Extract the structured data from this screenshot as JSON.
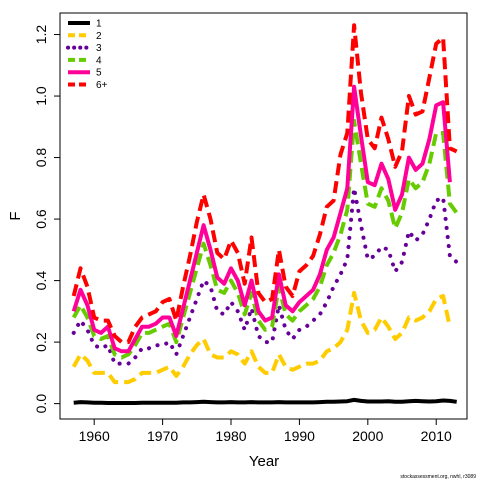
{
  "footnote": "stockassessment.org, nwhl, r3089",
  "chart_data": {
    "type": "line",
    "title": "",
    "xlabel": "Year",
    "ylabel": "F",
    "xlim": [
      1955,
      2014.5
    ],
    "ylim": [
      -0.05,
      1.27
    ],
    "xticks": [
      "1960",
      "1970",
      "1980",
      "1990",
      "2000",
      "2010"
    ],
    "yticks": [
      "0.0",
      "0.2",
      "0.4",
      "0.6",
      "0.8",
      "1.0",
      "1.2"
    ],
    "legend_position": "top-left",
    "x": [
      1957,
      1958,
      1959,
      1960,
      1961,
      1962,
      1963,
      1964,
      1965,
      1966,
      1967,
      1968,
      1969,
      1970,
      1971,
      1972,
      1973,
      1974,
      1975,
      1976,
      1977,
      1978,
      1979,
      1980,
      1981,
      1982,
      1983,
      1984,
      1985,
      1986,
      1987,
      1988,
      1989,
      1990,
      1991,
      1992,
      1993,
      1994,
      1995,
      1996,
      1997,
      1998,
      1999,
      2000,
      2001,
      2002,
      2003,
      2004,
      2005,
      2006,
      2007,
      2008,
      2009,
      2010,
      2011,
      2012,
      2013
    ],
    "series": [
      {
        "name": "1",
        "color": "#000000",
        "dash": "solid",
        "values": [
          0.003,
          0.005,
          0.004,
          0.003,
          0.003,
          0.002,
          0.002,
          0.002,
          0.002,
          0.002,
          0.003,
          0.003,
          0.003,
          0.003,
          0.003,
          0.003,
          0.004,
          0.004,
          0.005,
          0.006,
          0.005,
          0.004,
          0.004,
          0.005,
          0.004,
          0.004,
          0.005,
          0.004,
          0.004,
          0.004,
          0.005,
          0.004,
          0.004,
          0.004,
          0.004,
          0.004,
          0.005,
          0.006,
          0.006,
          0.007,
          0.008,
          0.012,
          0.009,
          0.007,
          0.007,
          0.007,
          0.008,
          0.006,
          0.006,
          0.008,
          0.009,
          0.008,
          0.007,
          0.008,
          0.01,
          0.009,
          0.006
        ]
      },
      {
        "name": "2",
        "color": "#ffcc00",
        "dash": "dash",
        "values": [
          0.12,
          0.16,
          0.14,
          0.1,
          0.1,
          0.1,
          0.07,
          0.07,
          0.07,
          0.08,
          0.1,
          0.1,
          0.1,
          0.11,
          0.12,
          0.09,
          0.12,
          0.16,
          0.19,
          0.21,
          0.16,
          0.15,
          0.15,
          0.17,
          0.16,
          0.13,
          0.17,
          0.12,
          0.1,
          0.1,
          0.16,
          0.12,
          0.11,
          0.12,
          0.13,
          0.13,
          0.14,
          0.17,
          0.18,
          0.2,
          0.24,
          0.36,
          0.27,
          0.23,
          0.24,
          0.28,
          0.25,
          0.21,
          0.23,
          0.28,
          0.27,
          0.28,
          0.3,
          0.34,
          0.35,
          0.25,
          null
        ]
      },
      {
        "name": "3",
        "color": "#660099",
        "dash": "dot",
        "values": [
          0.23,
          0.27,
          0.24,
          0.19,
          0.18,
          0.19,
          0.13,
          0.13,
          0.13,
          0.15,
          0.18,
          0.18,
          0.19,
          0.19,
          0.2,
          0.16,
          0.22,
          0.28,
          0.34,
          0.4,
          0.38,
          0.3,
          0.29,
          0.33,
          0.3,
          0.24,
          0.31,
          0.22,
          0.2,
          0.2,
          0.32,
          0.24,
          0.21,
          0.24,
          0.25,
          0.27,
          0.29,
          0.33,
          0.38,
          0.42,
          0.47,
          0.7,
          0.58,
          0.47,
          0.48,
          0.51,
          0.5,
          0.43,
          0.46,
          0.56,
          0.53,
          0.55,
          0.6,
          0.66,
          0.67,
          0.48,
          0.46
        ]
      },
      {
        "name": "4",
        "color": "#66cc00",
        "dash": "dash",
        "values": [
          0.28,
          0.32,
          0.28,
          0.22,
          0.21,
          0.22,
          0.16,
          0.15,
          0.16,
          0.19,
          0.23,
          0.23,
          0.24,
          0.25,
          0.26,
          0.2,
          0.28,
          0.36,
          0.44,
          0.52,
          0.45,
          0.37,
          0.36,
          0.4,
          0.36,
          0.29,
          0.36,
          0.27,
          0.24,
          0.25,
          0.38,
          0.29,
          0.27,
          0.3,
          0.32,
          0.34,
          0.38,
          0.45,
          0.49,
          0.55,
          0.63,
          0.92,
          0.78,
          0.65,
          0.64,
          0.7,
          0.66,
          0.57,
          0.62,
          0.73,
          0.7,
          0.72,
          0.78,
          0.88,
          0.88,
          0.65,
          0.62
        ]
      },
      {
        "name": "5",
        "color": "#ff0099",
        "dash": "solid",
        "values": [
          0.3,
          0.37,
          0.32,
          0.24,
          0.23,
          0.25,
          0.18,
          0.17,
          0.17,
          0.21,
          0.25,
          0.25,
          0.26,
          0.28,
          0.28,
          0.22,
          0.31,
          0.4,
          0.49,
          0.58,
          0.5,
          0.41,
          0.39,
          0.44,
          0.4,
          0.32,
          0.4,
          0.3,
          0.27,
          0.28,
          0.42,
          0.32,
          0.3,
          0.33,
          0.35,
          0.37,
          0.42,
          0.5,
          0.54,
          0.62,
          0.7,
          1.03,
          0.87,
          0.72,
          0.71,
          0.78,
          0.73,
          0.63,
          0.68,
          0.8,
          0.76,
          0.78,
          0.86,
          0.97,
          0.98,
          0.72,
          null
        ]
      },
      {
        "name": "6+",
        "color": "#ff0000",
        "dash": "dash",
        "values": [
          0.35,
          0.44,
          0.38,
          0.28,
          0.27,
          0.27,
          0.22,
          0.2,
          0.2,
          0.25,
          0.28,
          0.29,
          0.3,
          0.33,
          0.34,
          0.27,
          0.38,
          0.48,
          0.59,
          0.68,
          0.6,
          0.49,
          0.47,
          0.53,
          0.49,
          0.39,
          0.54,
          0.36,
          0.33,
          0.34,
          0.5,
          0.38,
          0.35,
          0.43,
          0.45,
          0.48,
          0.55,
          0.64,
          0.66,
          0.81,
          0.88,
          1.23,
          1.01,
          0.86,
          0.83,
          0.93,
          0.86,
          0.77,
          0.82,
          1.0,
          0.94,
          0.95,
          1.06,
          1.17,
          1.19,
          0.83,
          0.82
        ]
      }
    ]
  }
}
